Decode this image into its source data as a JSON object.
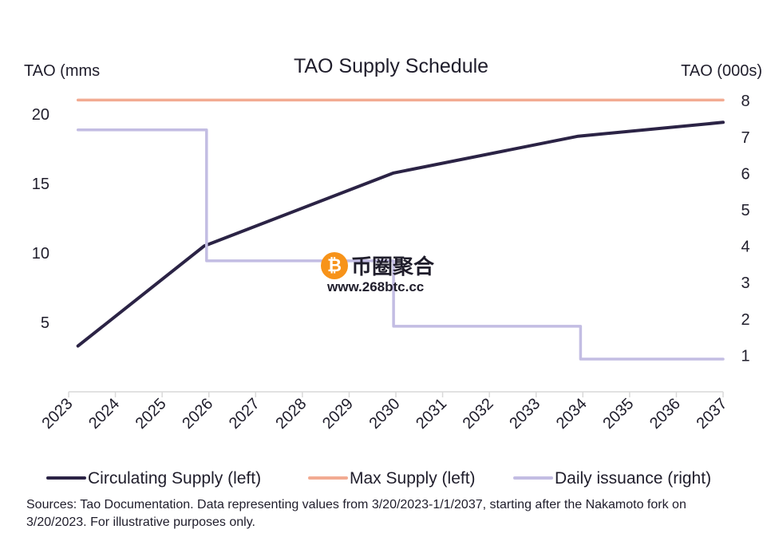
{
  "chart_data": {
    "type": "line",
    "title": "TAO Supply Schedule",
    "ylabel_left": "TAO (mms",
    "ylabel_right": "TAO (000s)",
    "x_ticks": [
      "2023",
      "2024",
      "2025",
      "2026",
      "2027",
      "2028",
      "2029",
      "2030",
      "2031",
      "2032",
      "2033",
      "2034",
      "2035",
      "2036",
      "2037"
    ],
    "xlim": [
      2023,
      2037
    ],
    "ylim_left": [
      0,
      22
    ],
    "yticks_left": [
      5,
      10,
      15,
      20
    ],
    "ylim_right": [
      0,
      8.4
    ],
    "yticks_right": [
      1,
      2,
      3,
      4,
      5,
      6,
      7,
      8
    ],
    "series": [
      {
        "name": "Circulating Supply (left)",
        "axis": "left",
        "color": "#2b2345",
        "step": false,
        "points": [
          [
            2023.2,
            3.3
          ],
          [
            2025.9,
            10.5
          ],
          [
            2029.95,
            15.75
          ],
          [
            2033.9,
            18.4
          ],
          [
            2037,
            19.4
          ]
        ]
      },
      {
        "name": "Max Supply (left)",
        "axis": "left",
        "color": "#f2ab92",
        "step": false,
        "points": [
          [
            2023.2,
            21
          ],
          [
            2037,
            21
          ]
        ]
      },
      {
        "name": "Daily issuance (right)",
        "axis": "right",
        "color": "#c3bde3",
        "step": true,
        "points": [
          [
            2023.2,
            7.2
          ],
          [
            2025.95,
            7.2
          ],
          [
            2025.95,
            3.6
          ],
          [
            2029.95,
            3.6
          ],
          [
            2029.95,
            1.8
          ],
          [
            2033.95,
            1.8
          ],
          [
            2033.95,
            0.9
          ],
          [
            2037,
            0.9
          ]
        ]
      }
    ]
  },
  "legend": [
    {
      "label": "Circulating Supply (left)",
      "color": "#2b2345"
    },
    {
      "label": "Max Supply (left)",
      "color": "#f2ab92"
    },
    {
      "label": "Daily issuance (right)",
      "color": "#c3bde3"
    }
  ],
  "source_text": "Sources: Tao Documentation. Data representing values from 3/20/2023-1/1/2037, starting after the Nakamoto fork on 3/20/2023. For illustrative purposes only.",
  "watermark": {
    "coin_symbol": "₿",
    "name": "币圈聚合",
    "url": "www.268btc.cc"
  }
}
